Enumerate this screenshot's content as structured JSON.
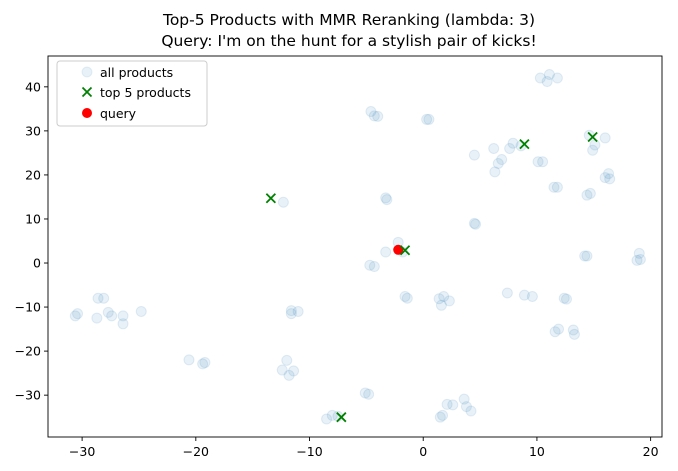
{
  "chart_data": {
    "type": "scatter",
    "title_line1": "Top-5 Products with MMR Reranking (lambda: 3)",
    "title_line2": "Query: I'm on the hunt for a stylish pair of kicks!",
    "xlabel": "",
    "ylabel": "",
    "xlim": [
      -33,
      21
    ],
    "ylim": [
      -39.5,
      47
    ],
    "xticks": [
      -30,
      -20,
      -10,
      0,
      10,
      20
    ],
    "yticks": [
      -30,
      -20,
      -10,
      0,
      10,
      20,
      30,
      40
    ],
    "grid": false,
    "legend_position": "top-left",
    "legend": [
      "all products",
      "top 5 products",
      "query"
    ],
    "colors": {
      "all_products": "#1f77b4",
      "top5": "#008000",
      "query": "#ff0000"
    },
    "series": [
      {
        "name": "all products",
        "marker": "circle",
        "points": [
          [
            -30.6,
            -12.0
          ],
          [
            -30.4,
            -11.5
          ],
          [
            -28.6,
            -8.0
          ],
          [
            -28.1,
            -8.0
          ],
          [
            -28.7,
            -12.5
          ],
          [
            -27.7,
            -11.2
          ],
          [
            -27.4,
            -12.0
          ],
          [
            -26.4,
            -12.0
          ],
          [
            -26.4,
            -13.8
          ],
          [
            -24.8,
            -11.0
          ],
          [
            -20.6,
            -22.0
          ],
          [
            -19.4,
            -22.9
          ],
          [
            -19.2,
            -22.6
          ],
          [
            -12.3,
            13.8
          ],
          [
            -11.6,
            -10.8
          ],
          [
            -11.6,
            -11.5
          ],
          [
            -11.0,
            -11.0
          ],
          [
            -12.4,
            -24.3
          ],
          [
            -12.0,
            -22.1
          ],
          [
            -11.8,
            -25.5
          ],
          [
            -11.4,
            -24.5
          ],
          [
            -8.5,
            -35.4
          ],
          [
            -8.0,
            -34.6
          ],
          [
            -7.5,
            -34.8
          ],
          [
            -4.6,
            34.4
          ],
          [
            -4.3,
            33.4
          ],
          [
            -4.0,
            33.3
          ],
          [
            -3.3,
            14.8
          ],
          [
            -3.2,
            14.4
          ],
          [
            -3.3,
            2.5
          ],
          [
            -4.7,
            -0.5
          ],
          [
            -4.3,
            -0.8
          ],
          [
            -5.1,
            -29.5
          ],
          [
            -4.8,
            -29.8
          ],
          [
            -2.2,
            4.7
          ],
          [
            -1.8,
            2.5
          ],
          [
            -1.6,
            -7.6
          ],
          [
            -1.4,
            -8.0
          ],
          [
            0.3,
            32.6
          ],
          [
            0.5,
            32.6
          ],
          [
            1.4,
            -8.1
          ],
          [
            1.8,
            -7.6
          ],
          [
            1.6,
            -9.6
          ],
          [
            2.3,
            -8.6
          ],
          [
            1.7,
            -34.6
          ],
          [
            1.5,
            -35.0
          ],
          [
            2.1,
            -32.1
          ],
          [
            2.6,
            -32.2
          ],
          [
            3.6,
            -30.9
          ],
          [
            3.8,
            -32.6
          ],
          [
            4.2,
            -33.6
          ],
          [
            4.5,
            24.5
          ],
          [
            4.5,
            9.0
          ],
          [
            4.6,
            8.8
          ],
          [
            6.2,
            26.0
          ],
          [
            6.3,
            20.7
          ],
          [
            6.6,
            22.6
          ],
          [
            6.9,
            23.5
          ],
          [
            7.4,
            -6.8
          ],
          [
            7.6,
            26.0
          ],
          [
            7.9,
            27.2
          ],
          [
            8.6,
            26.6
          ],
          [
            8.9,
            -7.3
          ],
          [
            9.6,
            -7.6
          ],
          [
            10.3,
            42.0
          ],
          [
            10.1,
            23.0
          ],
          [
            10.5,
            23.0
          ],
          [
            10.9,
            41.2
          ],
          [
            11.1,
            42.8
          ],
          [
            11.5,
            17.2
          ],
          [
            11.8,
            17.2
          ],
          [
            11.8,
            42.0
          ],
          [
            11.6,
            -15.6
          ],
          [
            11.9,
            -15.0
          ],
          [
            12.4,
            -8.0
          ],
          [
            12.6,
            -8.2
          ],
          [
            13.2,
            -15.2
          ],
          [
            13.3,
            -16.2
          ],
          [
            14.2,
            1.6
          ],
          [
            14.4,
            1.6
          ],
          [
            14.4,
            15.4
          ],
          [
            14.7,
            15.8
          ],
          [
            14.6,
            29.0
          ],
          [
            14.9,
            25.6
          ],
          [
            15.1,
            26.8
          ],
          [
            16.0,
            28.4
          ],
          [
            16.0,
            19.4
          ],
          [
            16.3,
            20.3
          ],
          [
            16.4,
            19.1
          ],
          [
            19.0,
            2.2
          ],
          [
            18.8,
            0.6
          ],
          [
            19.1,
            0.8
          ]
        ]
      },
      {
        "name": "top 5 products",
        "marker": "x",
        "points": [
          [
            -13.4,
            14.7
          ],
          [
            -1.6,
            2.9
          ],
          [
            8.9,
            27.0
          ],
          [
            14.9,
            28.6
          ],
          [
            -7.2,
            -35.0
          ]
        ]
      },
      {
        "name": "query",
        "marker": "circle",
        "points": [
          [
            -2.2,
            3.0
          ]
        ]
      }
    ]
  }
}
